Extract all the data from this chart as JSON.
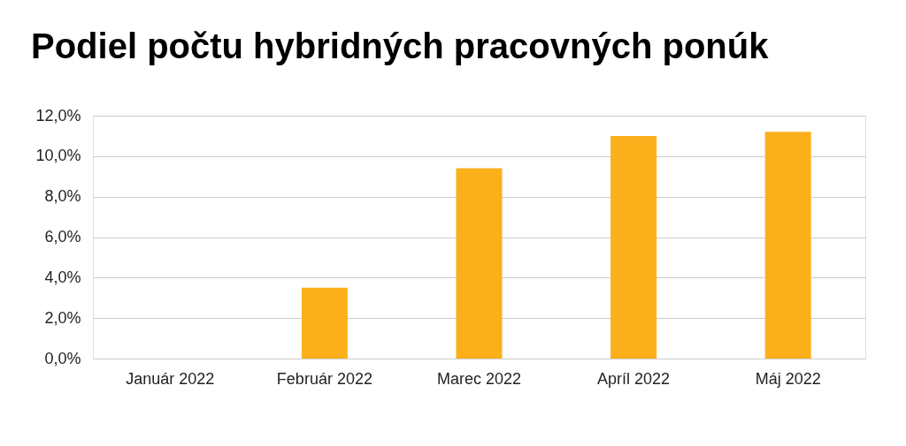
{
  "chart_data": {
    "type": "bar",
    "title": "Podiel počtu hybridných pracovných ponúk",
    "categories": [
      "Január 2022",
      "Február 2022",
      "Marec 2022",
      "Apríl 2022",
      "Máj 2022"
    ],
    "values": [
      0,
      3.5,
      9.4,
      11.0,
      11.2
    ],
    "color": "#fbb01b",
    "ylim": [
      0,
      12
    ],
    "yticks": [
      {
        "value": 0,
        "label": "0,0%"
      },
      {
        "value": 2,
        "label": "2,0%"
      },
      {
        "value": 4,
        "label": "4,0%"
      },
      {
        "value": 6,
        "label": "6,0%"
      },
      {
        "value": 8,
        "label": "8,0%"
      },
      {
        "value": 10,
        "label": "10,0%"
      },
      {
        "value": 12,
        "label": "12,0%"
      }
    ],
    "grid": "y"
  }
}
